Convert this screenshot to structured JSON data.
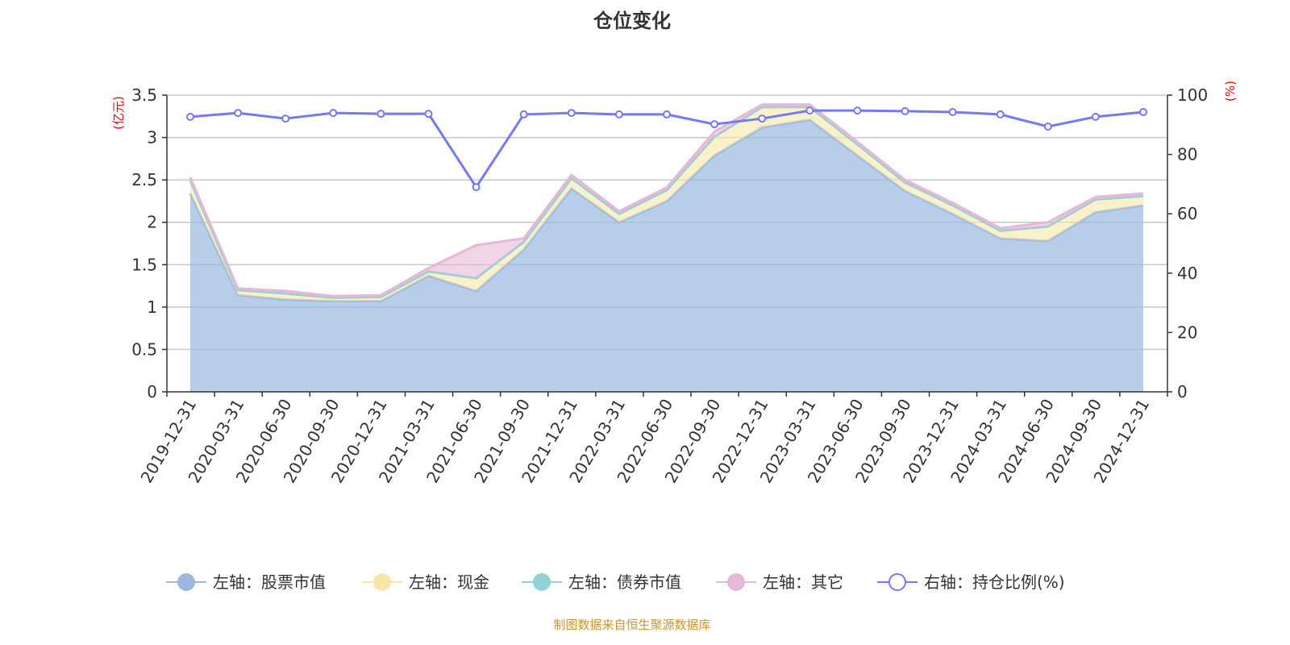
{
  "chart_data": {
    "type": "area",
    "title": "仓位变化",
    "left_axis": {
      "label": "(亿元)",
      "ylim": [
        0,
        3.5
      ],
      "ticks": [
        0,
        0.5,
        1,
        1.5,
        2,
        2.5,
        3,
        3.5
      ]
    },
    "right_axis": {
      "label": "(%)",
      "ylim": [
        0,
        100
      ],
      "ticks": [
        0,
        20,
        40,
        60,
        80,
        100
      ]
    },
    "grid": true,
    "legend_position": "bottom",
    "categories": [
      "2019-12-31",
      "2020-03-31",
      "2020-06-30",
      "2020-09-30",
      "2020-12-31",
      "2021-03-31",
      "2021-06-30",
      "2021-09-30",
      "2021-12-31",
      "2022-03-31",
      "2022-06-30",
      "2022-09-30",
      "2022-12-31",
      "2023-03-31",
      "2023-06-30",
      "2023-09-30",
      "2023-12-31",
      "2024-03-31",
      "2024-06-30",
      "2024-09-30",
      "2024-12-31"
    ],
    "series": [
      {
        "name": "左轴：股票市值",
        "axis": "left",
        "stack": true,
        "color": "#9ab8e0",
        "values": [
          2.34,
          1.14,
          1.09,
          1.07,
          1.07,
          1.37,
          1.19,
          1.68,
          2.4,
          2.0,
          2.25,
          2.79,
          3.12,
          3.21,
          2.79,
          2.37,
          2.1,
          1.81,
          1.78,
          2.12,
          2.2
        ]
      },
      {
        "name": "左轴：现金",
        "axis": "left",
        "stack": true,
        "color": "#f7e7a6",
        "values": [
          0.15,
          0.06,
          0.07,
          0.04,
          0.05,
          0.05,
          0.15,
          0.09,
          0.12,
          0.1,
          0.13,
          0.22,
          0.24,
          0.15,
          0.13,
          0.1,
          0.1,
          0.09,
          0.17,
          0.15,
          0.11
        ]
      },
      {
        "name": "左轴：债券市值",
        "axis": "left",
        "stack": true,
        "color": "#8fd3d4",
        "values": [
          0,
          0,
          0,
          0,
          0,
          0,
          0,
          0,
          0,
          0,
          0,
          0,
          0,
          0,
          0,
          0,
          0,
          0,
          0,
          0,
          0
        ]
      },
      {
        "name": "左轴：其它",
        "axis": "left",
        "stack": true,
        "color": "#e6b8d8",
        "values": [
          0.04,
          0.02,
          0.03,
          0.02,
          0.02,
          0.04,
          0.39,
          0.04,
          0.04,
          0.03,
          0.03,
          0.06,
          0.03,
          0.03,
          0.03,
          0.03,
          0.03,
          0.03,
          0.05,
          0.03,
          0.03
        ]
      },
      {
        "name": "右轴：持仓比例(%)",
        "axis": "right",
        "type": "line",
        "color": "#7479f5",
        "values": [
          92.7,
          94.0,
          92.1,
          94.0,
          93.7,
          93.7,
          69.0,
          93.5,
          94.0,
          93.5,
          93.5,
          90.2,
          92.1,
          94.8,
          94.8,
          94.6,
          94.3,
          93.5,
          89.4,
          92.7,
          94.3
        ]
      }
    ]
  },
  "footer": "制图数据来自恒生聚源数据库"
}
